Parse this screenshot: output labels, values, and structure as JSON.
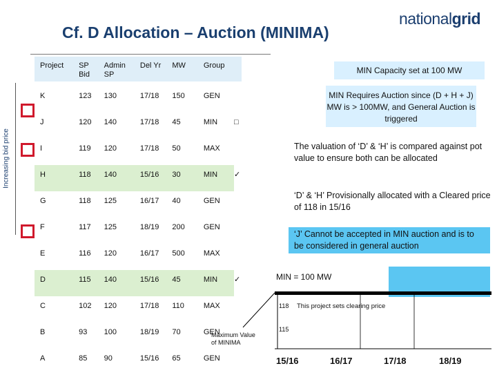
{
  "title": "Cf. D Allocation – Auction (MINIMA)",
  "logo": {
    "part1": "national",
    "part2": "grid"
  },
  "axis_label": "Increasing bid price",
  "table": {
    "headers": [
      "Project",
      "SP Bid",
      "Admin SP",
      "Del Yr",
      "MW",
      "Group"
    ],
    "rows": [
      {
        "project": "K",
        "sp_bid": "123",
        "admin_sp": "130",
        "del_yr": "17/18",
        "mw": "150",
        "group": "GEN",
        "mark": ""
      },
      {
        "project": "J",
        "sp_bid": "120",
        "admin_sp": "140",
        "del_yr": "17/18",
        "mw": "45",
        "group": "MIN",
        "mark": "□"
      },
      {
        "project": "I",
        "sp_bid": "119",
        "admin_sp": "120",
        "del_yr": "17/18",
        "mw": "50",
        "group": "MAX",
        "mark": ""
      },
      {
        "project": "H",
        "sp_bid": "118",
        "admin_sp": "140",
        "del_yr": "15/16",
        "mw": "30",
        "group": "MIN",
        "mark": "✓"
      },
      {
        "project": "G",
        "sp_bid": "118",
        "admin_sp": "125",
        "del_yr": "16/17",
        "mw": "40",
        "group": "GEN",
        "mark": ""
      },
      {
        "project": "F",
        "sp_bid": "117",
        "admin_sp": "125",
        "del_yr": "18/19",
        "mw": "200",
        "group": "GEN",
        "mark": ""
      },
      {
        "project": "E",
        "sp_bid": "116",
        "admin_sp": "120",
        "del_yr": "16/17",
        "mw": "500",
        "group": "MAX",
        "mark": ""
      },
      {
        "project": "D",
        "sp_bid": "115",
        "admin_sp": "140",
        "del_yr": "15/16",
        "mw": "45",
        "group": "MIN",
        "mark": "✓"
      },
      {
        "project": "C",
        "sp_bid": "102",
        "admin_sp": "120",
        "del_yr": "17/18",
        "mw": "110",
        "group": "MAX",
        "mark": ""
      },
      {
        "project": "B",
        "sp_bid": "93",
        "admin_sp": "100",
        "del_yr": "18/19",
        "mw": "70",
        "group": "GEN",
        "mark": ""
      },
      {
        "project": "A",
        "sp_bid": "85",
        "admin_sp": "90",
        "del_yr": "15/16",
        "mw": "65",
        "group": "GEN",
        "mark": ""
      }
    ]
  },
  "notes": {
    "capacity": "MIN Capacity set at 100 MW",
    "requires_auction": "MIN Requires Auction since (D + H + J) MW is > 100MW, and General Auction is triggered",
    "valuation": "The valuation of ‘D’ & ‘H’ is compared against pot value to ensure both can be allocated",
    "provisional": "‘D’ & ‘H’ Provisionally allocated with a Cleared price of 118 in 15/16",
    "j_rejected": "‘J’ Cannot be accepted in MIN auction and is to be considered in general auction"
  },
  "chart_data": {
    "type": "area",
    "title": "MIN = 100 MW",
    "categories": [
      "15/16",
      "16/17",
      "17/18",
      "18/19"
    ],
    "clearing_price": 118,
    "clearing_label": "This project sets clearing price",
    "lower_value": 115,
    "annotation": "Maximum Value of MINIMA",
    "colors": {
      "fill": "#5bc6f2",
      "threshold": "#000000"
    }
  }
}
